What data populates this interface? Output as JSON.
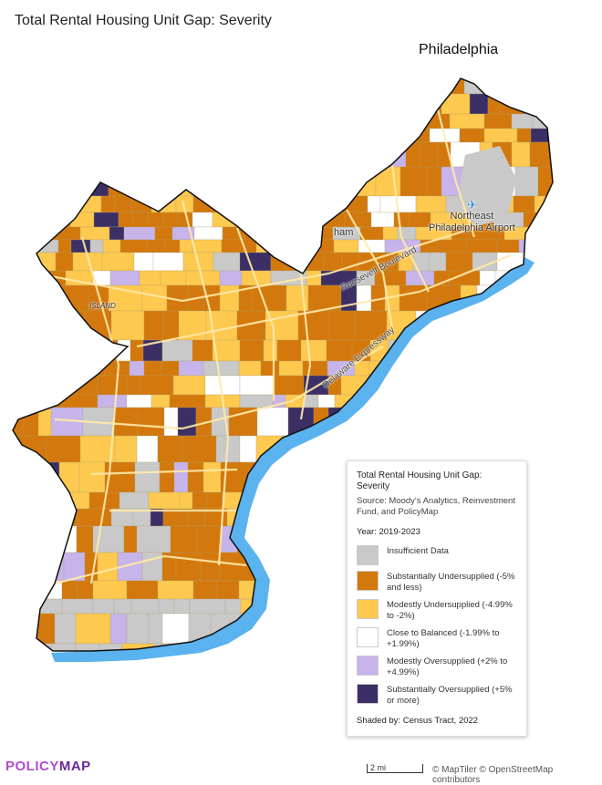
{
  "header": {
    "title": "Total Rental Housing Unit Gap: Severity",
    "city": "Philadelphia"
  },
  "map_labels": {
    "airport": [
      "Northeast",
      "Philadelphia Airport"
    ],
    "place_fragment": "ham",
    "island_fragment": "ISLAND",
    "road_roosevelt": "Roosevelt Boulevard",
    "road_delaware": "Delaware Expressway"
  },
  "legend": {
    "title": "Total Rental Housing Unit Gap: Severity",
    "source": "Source: Moody's Analytics, Reinvestment Fund, and PolicyMap",
    "year": "Year: 2019-2023",
    "items": [
      {
        "label": "Insufficient Data",
        "color": "#c9c9c9"
      },
      {
        "label": "Substantially Undersupplied (-5% and less)",
        "color": "#d3780c"
      },
      {
        "label": "Modestly Undersupplied (-4.99% to -2%)",
        "color": "#fdc94f"
      },
      {
        "label": "Close to Balanced (-1.99% to +1.99%)",
        "color": "#ffffff"
      },
      {
        "label": "Modestly Oversupplied (+2% to +4.99%)",
        "color": "#c6b4ea"
      },
      {
        "label": "Substantially Oversupplied (+5% or more)",
        "color": "#3b2f66"
      }
    ],
    "shaded_by": "Shaded by: Census Tract, 2022"
  },
  "footer": {
    "logo_part1": "POLICY",
    "logo_part2": "MAP",
    "scale": "2 mi",
    "attribution": "© MapTiler © OpenStreetMap contributors"
  },
  "colors": {
    "water": "#5ab2ef",
    "road": "#ffe9a8",
    "boundary": "#111111"
  }
}
